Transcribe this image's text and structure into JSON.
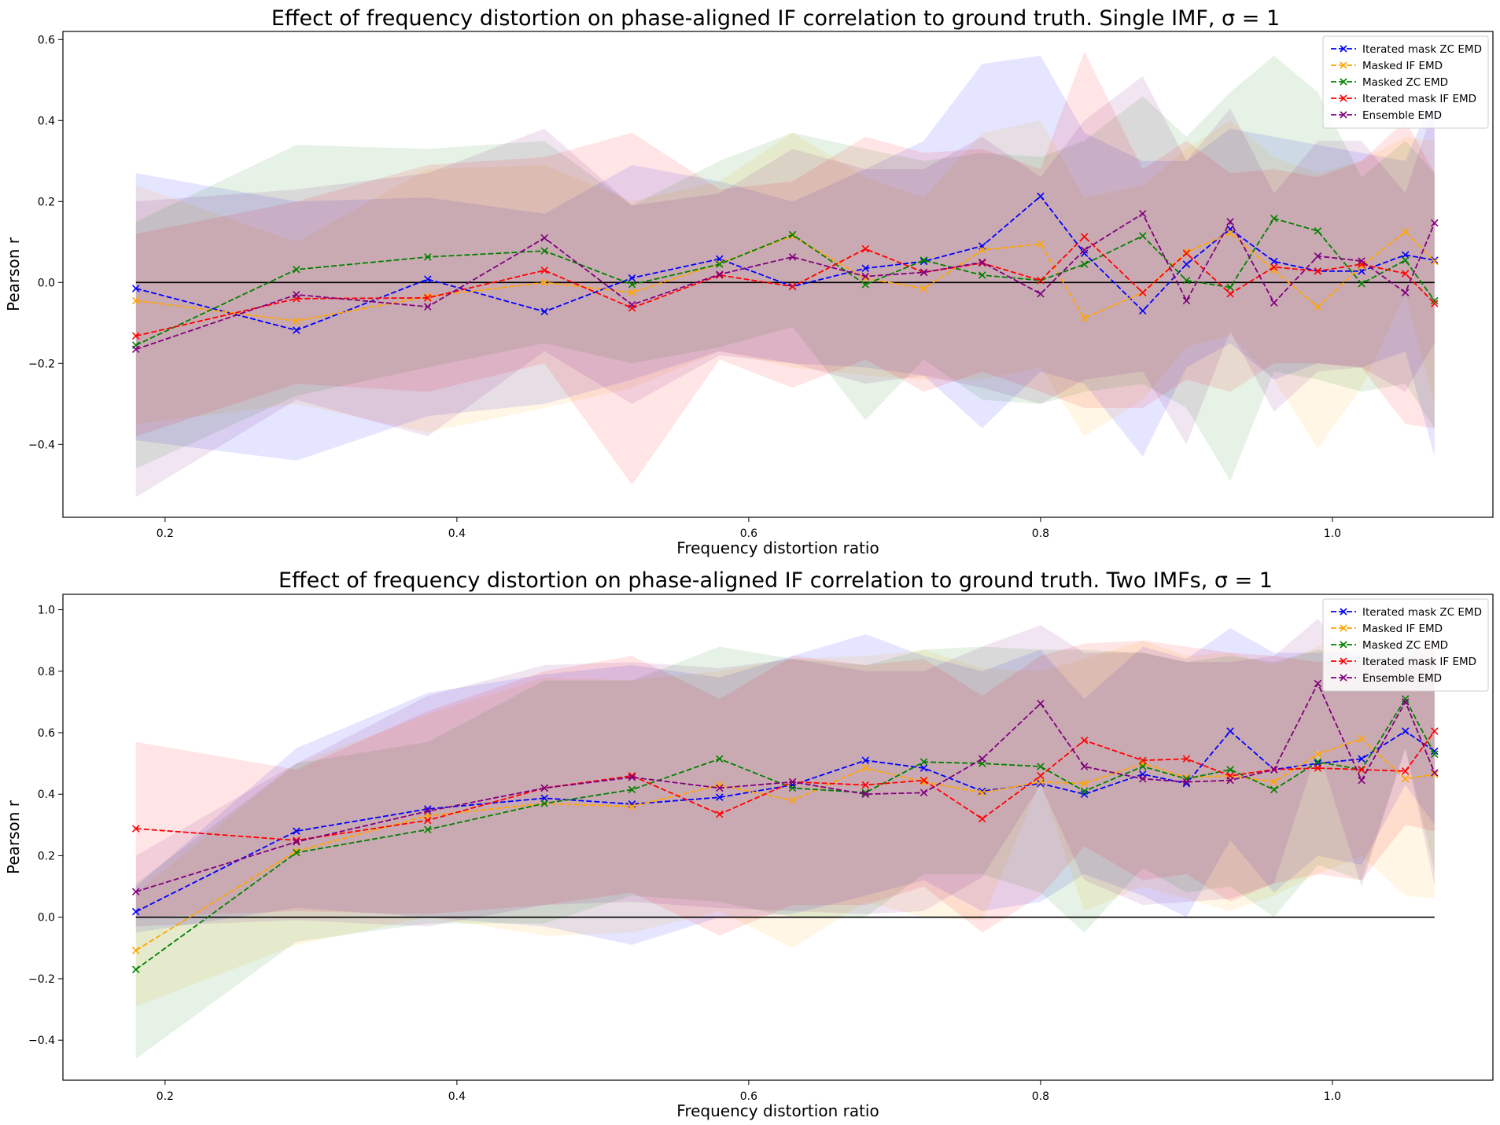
{
  "chart_data": [
    {
      "type": "line",
      "title": "Effect of frequency distortion on phase-aligned IF correlation to ground truth.  Single IMF, σ = 1",
      "xlabel": "Frequency distortion ratio",
      "ylabel": "Pearson r",
      "xlim": [
        0.13,
        1.11
      ],
      "ylim": [
        -0.58,
        0.62
      ],
      "xticks": [
        0.2,
        0.4,
        0.6,
        0.8,
        1.0
      ],
      "xtick_labels": [
        "0.2",
        "0.4",
        "0.6",
        "0.8",
        "1.0"
      ],
      "yticks": [
        -0.4,
        -0.2,
        0.0,
        0.2,
        0.4,
        0.6
      ],
      "ytick_labels": [
        "−0.4",
        "−0.2",
        "0.0",
        "0.2",
        "0.4",
        "0.6"
      ],
      "reference_line_y": 0,
      "legend_position": "top-right",
      "x": [
        0.18,
        0.29,
        0.38,
        0.46,
        0.52,
        0.58,
        0.63,
        0.68,
        0.72,
        0.76,
        0.8,
        0.83,
        0.87,
        0.9,
        0.93,
        0.96,
        0.99,
        1.02,
        1.05,
        1.07
      ],
      "series": [
        {
          "name": "Iterated mask ZC EMD",
          "color": "#0000ff",
          "values": [
            -0.015,
            -0.118,
            0.008,
            -0.072,
            0.011,
            0.058,
            -0.01,
            0.035,
            0.052,
            0.09,
            0.213,
            0.072,
            -0.07,
            0.045,
            0.132,
            0.052,
            0.028,
            0.028,
            0.068,
            0.055
          ],
          "lower": [
            -0.39,
            -0.44,
            -0.33,
            -0.3,
            -0.24,
            -0.17,
            -0.2,
            -0.21,
            -0.23,
            -0.36,
            -0.22,
            -0.25,
            -0.43,
            -0.21,
            -0.15,
            -0.24,
            -0.2,
            -0.21,
            -0.17,
            -0.43
          ],
          "upper": [
            0.27,
            0.2,
            0.21,
            0.17,
            0.29,
            0.25,
            0.2,
            0.28,
            0.35,
            0.54,
            0.56,
            0.37,
            0.3,
            0.3,
            0.38,
            0.36,
            0.34,
            0.32,
            0.3,
            0.47
          ]
        },
        {
          "name": "Masked IF EMD",
          "color": "#ffa500",
          "values": [
            -0.045,
            -0.095,
            -0.035,
            0.0,
            -0.025,
            0.047,
            0.115,
            0.01,
            -0.015,
            0.08,
            0.095,
            -0.088,
            -0.025,
            0.075,
            0.122,
            0.03,
            -0.06,
            0.04,
            0.125,
            0.052
          ],
          "lower": [
            -0.35,
            -0.3,
            -0.37,
            -0.31,
            -0.26,
            -0.17,
            -0.21,
            -0.23,
            -0.24,
            -0.24,
            -0.21,
            -0.38,
            -0.29,
            -0.16,
            -0.13,
            -0.24,
            -0.41,
            -0.26,
            -0.03,
            -0.3
          ],
          "upper": [
            0.24,
            0.1,
            0.28,
            0.29,
            0.2,
            0.25,
            0.37,
            0.26,
            0.21,
            0.37,
            0.4,
            0.21,
            0.24,
            0.33,
            0.4,
            0.31,
            0.27,
            0.3,
            0.36,
            0.35
          ]
        },
        {
          "name": "Masked ZC EMD",
          "color": "#008000",
          "values": [
            -0.155,
            0.032,
            0.063,
            0.078,
            -0.005,
            0.045,
            0.118,
            -0.005,
            0.055,
            0.018,
            0.005,
            0.045,
            0.115,
            0.005,
            -0.012,
            0.158,
            0.127,
            -0.003,
            0.055,
            -0.045
          ],
          "lower": [
            -0.46,
            -0.28,
            -0.21,
            -0.15,
            -0.2,
            -0.16,
            -0.11,
            -0.34,
            -0.19,
            -0.29,
            -0.3,
            -0.27,
            -0.25,
            -0.31,
            -0.49,
            -0.22,
            -0.24,
            -0.27,
            -0.25,
            -0.36
          ],
          "upper": [
            0.15,
            0.34,
            0.33,
            0.35,
            0.19,
            0.3,
            0.37,
            0.33,
            0.3,
            0.32,
            0.31,
            0.35,
            0.46,
            0.36,
            0.47,
            0.56,
            0.47,
            0.26,
            0.35,
            0.27
          ]
        },
        {
          "name": "Iterated mask IF EMD",
          "color": "#ff0000",
          "values": [
            -0.132,
            -0.04,
            -0.038,
            0.03,
            -0.063,
            0.018,
            -0.01,
            0.083,
            0.025,
            0.048,
            0.005,
            0.113,
            -0.025,
            0.072,
            -0.028,
            0.038,
            0.028,
            0.045,
            0.022,
            -0.052
          ],
          "lower": [
            -0.38,
            -0.25,
            -0.27,
            -0.2,
            -0.5,
            -0.19,
            -0.26,
            -0.19,
            -0.27,
            -0.22,
            -0.27,
            -0.31,
            -0.31,
            -0.24,
            -0.27,
            -0.2,
            -0.2,
            -0.21,
            -0.35,
            -0.36
          ],
          "upper": [
            0.12,
            0.2,
            0.29,
            0.31,
            0.37,
            0.23,
            0.25,
            0.36,
            0.32,
            0.33,
            0.28,
            0.57,
            0.28,
            0.35,
            0.27,
            0.28,
            0.26,
            0.3,
            0.4,
            0.27
          ]
        },
        {
          "name": "Ensemble EMD",
          "color": "#800080",
          "values": [
            -0.165,
            -0.03,
            -0.06,
            0.11,
            -0.055,
            0.02,
            0.063,
            0.015,
            0.025,
            0.05,
            -0.028,
            0.08,
            0.17,
            -0.045,
            0.15,
            -0.05,
            0.065,
            0.053,
            -0.025,
            0.147
          ],
          "lower": [
            -0.53,
            -0.29,
            -0.38,
            -0.17,
            -0.3,
            -0.18,
            -0.2,
            -0.25,
            -0.23,
            -0.26,
            -0.3,
            -0.24,
            -0.22,
            -0.4,
            -0.12,
            -0.32,
            -0.22,
            -0.21,
            -0.27,
            -0.15
          ],
          "upper": [
            0.2,
            0.23,
            0.27,
            0.38,
            0.19,
            0.22,
            0.33,
            0.28,
            0.28,
            0.36,
            0.26,
            0.4,
            0.51,
            0.3,
            0.43,
            0.22,
            0.35,
            0.35,
            0.22,
            0.44
          ]
        }
      ]
    },
    {
      "type": "line",
      "title": "Effect of frequency distortion on phase-aligned IF correlation to ground truth. Two IMFs, σ = 1",
      "xlabel": "Frequency distortion ratio",
      "ylabel": "Pearson r",
      "xlim": [
        0.13,
        1.11
      ],
      "ylim": [
        -0.53,
        1.05
      ],
      "xticks": [
        0.2,
        0.4,
        0.6,
        0.8,
        1.0
      ],
      "xtick_labels": [
        "0.2",
        "0.4",
        "0.6",
        "0.8",
        "1.0"
      ],
      "yticks": [
        -0.4,
        -0.2,
        0.0,
        0.2,
        0.4,
        0.6,
        0.8,
        1.0
      ],
      "ytick_labels": [
        "−0.4",
        "−0.2",
        "0.0",
        "0.2",
        "0.4",
        "0.6",
        "0.8",
        "1.0"
      ],
      "reference_line_y": 0,
      "legend_position": "top-right",
      "x": [
        0.18,
        0.29,
        0.38,
        0.46,
        0.52,
        0.58,
        0.63,
        0.68,
        0.72,
        0.76,
        0.8,
        0.83,
        0.87,
        0.9,
        0.93,
        0.96,
        0.99,
        1.02,
        1.05,
        1.07
      ],
      "series": [
        {
          "name": "Iterated mask ZC EMD",
          "color": "#0000ff",
          "values": [
            0.018,
            0.28,
            0.352,
            0.387,
            0.368,
            0.39,
            0.43,
            0.51,
            0.485,
            0.41,
            0.435,
            0.4,
            0.465,
            0.435,
            0.605,
            0.48,
            0.5,
            0.515,
            0.605,
            0.54
          ],
          "lower": [
            -0.05,
            0.03,
            0.0,
            -0.03,
            -0.09,
            0.0,
            0.01,
            0.07,
            0.12,
            0.02,
            0.05,
            0.14,
            0.07,
            0.0,
            0.25,
            0.08,
            0.2,
            0.17,
            0.43,
            0.3
          ],
          "upper": [
            0.1,
            0.55,
            0.73,
            0.79,
            0.82,
            0.78,
            0.85,
            0.92,
            0.85,
            0.8,
            0.87,
            0.71,
            0.88,
            0.84,
            0.94,
            0.86,
            0.86,
            0.87,
            0.88,
            0.84
          ]
        },
        {
          "name": "Masked IF EMD",
          "color": "#ffa500",
          "values": [
            -0.108,
            0.215,
            0.33,
            0.37,
            0.36,
            0.43,
            0.38,
            0.485,
            0.44,
            0.405,
            0.44,
            0.435,
            0.5,
            0.455,
            0.46,
            0.44,
            0.53,
            0.58,
            0.45,
            0.465
          ],
          "lower": [
            -0.29,
            -0.09,
            0.0,
            -0.06,
            -0.05,
            0.02,
            -0.1,
            0.05,
            0.0,
            -0.01,
            0.44,
            0.02,
            0.1,
            0.06,
            0.02,
            0.07,
            0.14,
            0.2,
            0.07,
            0.06
          ],
          "upper": [
            0.08,
            0.5,
            0.66,
            0.78,
            0.77,
            0.8,
            0.84,
            0.85,
            0.87,
            0.81,
            0.8,
            0.84,
            0.9,
            0.85,
            0.86,
            0.82,
            0.88,
            0.9,
            0.85,
            0.87
          ]
        },
        {
          "name": "Masked ZC EMD",
          "color": "#008000",
          "values": [
            -0.17,
            0.21,
            0.285,
            0.37,
            0.415,
            0.515,
            0.42,
            0.405,
            0.505,
            0.5,
            0.49,
            0.41,
            0.49,
            0.45,
            0.48,
            0.415,
            0.505,
            0.48,
            0.71,
            0.53
          ],
          "lower": [
            -0.46,
            -0.08,
            -0.02,
            -0.02,
            0.07,
            0.05,
            0.0,
            0.0,
            0.14,
            0.14,
            0.08,
            -0.05,
            0.16,
            0.08,
            0.1,
            0.0,
            0.17,
            0.12,
            0.55,
            0.15
          ],
          "upper": [
            0.11,
            0.5,
            0.57,
            0.77,
            0.77,
            0.88,
            0.84,
            0.82,
            0.87,
            0.88,
            0.87,
            0.87,
            0.86,
            0.83,
            0.85,
            0.83,
            0.87,
            0.85,
            0.88,
            0.88
          ]
        },
        {
          "name": "Iterated mask IF EMD",
          "color": "#ff0000",
          "values": [
            0.288,
            0.25,
            0.315,
            0.42,
            0.46,
            0.335,
            0.44,
            0.43,
            0.445,
            0.32,
            0.46,
            0.575,
            0.51,
            0.515,
            0.46,
            0.48,
            0.485,
            0.48,
            0.475,
            0.605
          ],
          "lower": [
            0.0,
            0.02,
            0.01,
            0.04,
            0.08,
            -0.06,
            0.04,
            0.04,
            0.1,
            -0.05,
            0.07,
            0.23,
            0.12,
            0.14,
            0.05,
            0.11,
            0.14,
            0.12,
            0.3,
            0.28
          ],
          "upper": [
            0.57,
            0.48,
            0.67,
            0.8,
            0.85,
            0.71,
            0.85,
            0.82,
            0.84,
            0.72,
            0.85,
            0.89,
            0.9,
            0.88,
            0.86,
            0.85,
            0.83,
            0.84,
            0.81,
            0.93
          ]
        },
        {
          "name": "Ensemble EMD",
          "color": "#800080",
          "values": [
            0.083,
            0.245,
            0.345,
            0.42,
            0.455,
            0.42,
            0.44,
            0.4,
            0.405,
            0.515,
            0.695,
            0.49,
            0.45,
            0.44,
            0.445,
            0.48,
            0.76,
            0.445,
            0.7,
            0.47
          ],
          "lower": [
            -0.03,
            -0.01,
            -0.03,
            0.04,
            0.05,
            0.03,
            0.02,
            0.01,
            0.02,
            0.13,
            0.43,
            0.12,
            0.04,
            0.05,
            0.06,
            0.11,
            0.55,
            0.1,
            0.55,
            0.1
          ],
          "upper": [
            0.2,
            0.5,
            0.72,
            0.82,
            0.83,
            0.81,
            0.84,
            0.8,
            0.8,
            0.88,
            0.95,
            0.86,
            0.86,
            0.83,
            0.83,
            0.85,
            0.97,
            0.8,
            0.85,
            0.83
          ]
        }
      ]
    }
  ]
}
